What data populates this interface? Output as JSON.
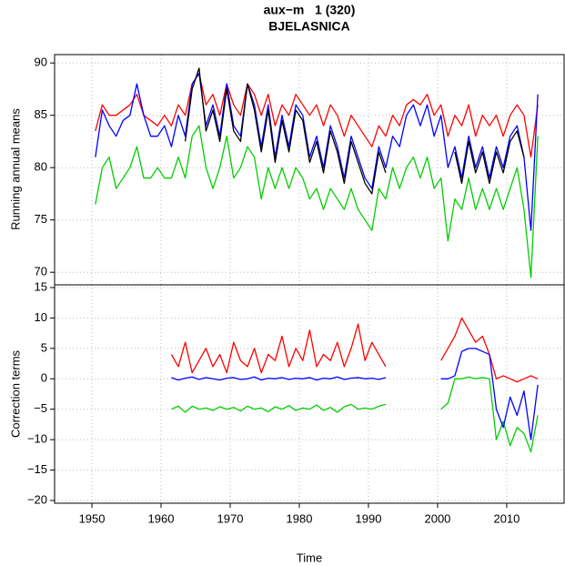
{
  "chart_data": [
    {
      "type": "line",
      "title": "aux−m   1 (320)",
      "subtitle": "BJELASNICA",
      "ylabel": "Running annual means",
      "x": [
        1950.5,
        1951.5,
        1952.5,
        1953.5,
        1954.5,
        1955.5,
        1956.5,
        1957.5,
        1958.5,
        1959.5,
        1960.5,
        1961.5,
        1962.5,
        1963.5,
        1964.5,
        1965.5,
        1966.5,
        1967.5,
        1968.5,
        1969.5,
        1970.5,
        1971.5,
        1972.5,
        1973.5,
        1974.5,
        1975.5,
        1976.5,
        1977.5,
        1978.5,
        1979.5,
        1980.5,
        1981.5,
        1982.5,
        1983.5,
        1984.5,
        1985.5,
        1986.5,
        1987.5,
        1988.5,
        1989.5,
        1990.5,
        1991.5,
        1992.5,
        1993.5,
        1994.5,
        1995.5,
        1996.5,
        1997.5,
        1998.5,
        1999.5,
        2000.5,
        2001.5,
        2002.5,
        2003.5,
        2004.5,
        2005.5,
        2006.5,
        2007.5,
        2008.5,
        2009.5,
        2010.5,
        2011.5,
        2012.5,
        2013.5,
        2014.5
      ],
      "xlim": [
        1944.6,
        2018.3
      ],
      "ylim": [
        68.8,
        90.8
      ],
      "yticks": [
        70,
        75,
        80,
        85,
        90
      ],
      "grid": true,
      "series": [
        {
          "color": "#00cd00",
          "values": [
            76.5,
            80,
            81,
            78,
            79,
            80,
            82,
            79,
            79,
            80,
            79,
            79,
            81,
            79,
            83,
            84,
            80,
            78,
            80,
            83,
            79,
            80,
            82,
            81,
            77,
            80,
            78,
            80,
            78,
            80,
            79,
            77,
            78,
            76,
            78,
            77,
            76,
            78,
            76,
            75,
            74,
            78,
            77,
            80,
            78,
            80,
            81,
            79,
            81,
            78,
            79,
            73,
            77,
            76,
            79,
            76,
            78,
            76,
            78,
            76,
            78,
            80,
            76,
            69.5,
            83
          ]
        },
        {
          "color": "#ff0000",
          "values": [
            83.5,
            86,
            85,
            85,
            85.5,
            86,
            87,
            85,
            84.5,
            84,
            85,
            84,
            86,
            85,
            88,
            89,
            86,
            87,
            85,
            88,
            86,
            85,
            88,
            87,
            85,
            87,
            84,
            86,
            85,
            87,
            86,
            85,
            86,
            84,
            86,
            85,
            83,
            85,
            84,
            83,
            82,
            84,
            83,
            85,
            84,
            86,
            86.5,
            86,
            87,
            85,
            86,
            83,
            85,
            84,
            86,
            83,
            85,
            84,
            85,
            83,
            85,
            86,
            85,
            81,
            86
          ]
        },
        {
          "color": "#0000ff",
          "values": [
            81,
            85.5,
            84,
            83,
            84.5,
            85,
            88,
            85,
            83,
            83,
            84,
            82,
            85,
            83,
            88,
            89,
            84,
            86,
            83,
            88,
            84,
            83,
            88,
            86,
            82,
            86,
            81,
            85,
            82,
            86,
            85,
            81,
            83,
            80,
            84,
            82,
            79,
            83,
            81,
            79,
            78,
            82,
            80,
            83,
            82,
            85,
            86,
            84,
            86,
            83,
            85,
            80,
            82,
            79,
            83,
            80,
            82,
            79,
            82,
            80,
            83,
            84,
            81,
            74,
            87
          ]
        },
        {
          "color": "#000000",
          "values": [
            null,
            null,
            null,
            null,
            null,
            null,
            null,
            null,
            null,
            null,
            null,
            null,
            null,
            82.5,
            87.5,
            89.5,
            83.5,
            85.5,
            82.5,
            87.5,
            83.5,
            82.5,
            88,
            85.5,
            81.5,
            85.5,
            80.5,
            84.5,
            81.5,
            85.5,
            84.5,
            80.5,
            82.5,
            79.5,
            83.5,
            81.5,
            78.5,
            82.5,
            80.5,
            78.5,
            77.5,
            81.5,
            79.5,
            null,
            null,
            null,
            null,
            null,
            null,
            null,
            null,
            null,
            81.5,
            78.5,
            82.5,
            79.5,
            81.5,
            78.5,
            81.5,
            79.5,
            82.5,
            83.5,
            81,
            null,
            null
          ]
        }
      ]
    },
    {
      "type": "line",
      "ylabel": "Correction terms",
      "xlabel": "Time",
      "x": [
        1950.5,
        1951.5,
        1952.5,
        1953.5,
        1954.5,
        1955.5,
        1956.5,
        1957.5,
        1958.5,
        1959.5,
        1960.5,
        1961.5,
        1962.5,
        1963.5,
        1964.5,
        1965.5,
        1966.5,
        1967.5,
        1968.5,
        1969.5,
        1970.5,
        1971.5,
        1972.5,
        1973.5,
        1974.5,
        1975.5,
        1976.5,
        1977.5,
        1978.5,
        1979.5,
        1980.5,
        1981.5,
        1982.5,
        1983.5,
        1984.5,
        1985.5,
        1986.5,
        1987.5,
        1988.5,
        1989.5,
        1990.5,
        1991.5,
        1992.5,
        1993.5,
        1994.5,
        1995.5,
        1996.5,
        1997.5,
        1998.5,
        1999.5,
        2000.5,
        2001.5,
        2002.5,
        2003.5,
        2004.5,
        2005.5,
        2006.5,
        2007.5,
        2008.5,
        2009.5,
        2010.5,
        2011.5,
        2012.5,
        2013.5,
        2014.5
      ],
      "xlim": [
        1944.6,
        2018.3
      ],
      "xticks": [
        1950,
        1960,
        1970,
        1980,
        1990,
        2000,
        2010
      ],
      "ylim": [
        -20.45,
        15.45
      ],
      "yticks": [
        15,
        10,
        5,
        0,
        {
          "value": -5,
          "label": "−5"
        },
        {
          "value": -10,
          "label": "−10"
        },
        {
          "value": -15,
          "label": "−15"
        },
        {
          "value": -20,
          "label": "−20"
        }
      ],
      "grid": true,
      "series": [
        {
          "color": "#ff0000",
          "values": [
            null,
            null,
            null,
            null,
            null,
            null,
            null,
            null,
            null,
            null,
            null,
            4,
            2,
            6,
            1,
            3,
            5,
            2,
            4,
            1,
            6,
            3,
            2,
            5,
            1,
            4,
            3,
            7,
            2,
            5,
            3,
            8,
            2,
            4,
            3,
            6,
            2,
            5,
            9,
            3,
            6,
            4,
            2,
            null,
            null,
            null,
            null,
            null,
            null,
            null,
            3,
            5,
            7,
            10,
            8,
            6,
            7,
            4,
            0,
            0.5,
            0,
            -0.5,
            0,
            0.5,
            0
          ]
        },
        {
          "color": "#00cd00",
          "values": [
            null,
            null,
            null,
            null,
            null,
            null,
            null,
            null,
            null,
            null,
            null,
            -5,
            -4.5,
            -5.5,
            -4.5,
            -5,
            -4.8,
            -5.2,
            -4.6,
            -5,
            -4.7,
            -5.3,
            -4.5,
            -5,
            -4.8,
            -5.4,
            -4.6,
            -5,
            -4.4,
            -5.2,
            -4.8,
            -5,
            -4.3,
            -5.2,
            -4.7,
            -5.5,
            -4.6,
            -4.2,
            -5,
            -4.8,
            -5,
            -4.5,
            -4.2,
            null,
            null,
            null,
            null,
            null,
            null,
            null,
            -5,
            -4,
            0,
            0,
            0.3,
            0,
            0.2,
            0,
            -10,
            -7,
            -11,
            -8,
            -9,
            -12,
            -6
          ]
        },
        {
          "color": "#0000ff",
          "values": [
            null,
            null,
            null,
            null,
            null,
            null,
            null,
            null,
            null,
            null,
            null,
            0.2,
            -0.2,
            0.1,
            0.3,
            -0.1,
            0.2,
            0,
            -0.2,
            0.1,
            0.2,
            -0.1,
            0,
            0.3,
            -0.2,
            0.1,
            0,
            0.2,
            -0.1,
            0.1,
            0,
            0.2,
            -0.2,
            0.1,
            0,
            0.3,
            -0.1,
            0.1,
            0.2,
            0,
            0.1,
            -0.1,
            0.2,
            null,
            null,
            null,
            null,
            null,
            null,
            null,
            0,
            0,
            0.5,
            4.5,
            5,
            5,
            4.5,
            4,
            -5,
            -8,
            -3,
            -6,
            -2,
            -10,
            -1
          ]
        }
      ]
    }
  ]
}
